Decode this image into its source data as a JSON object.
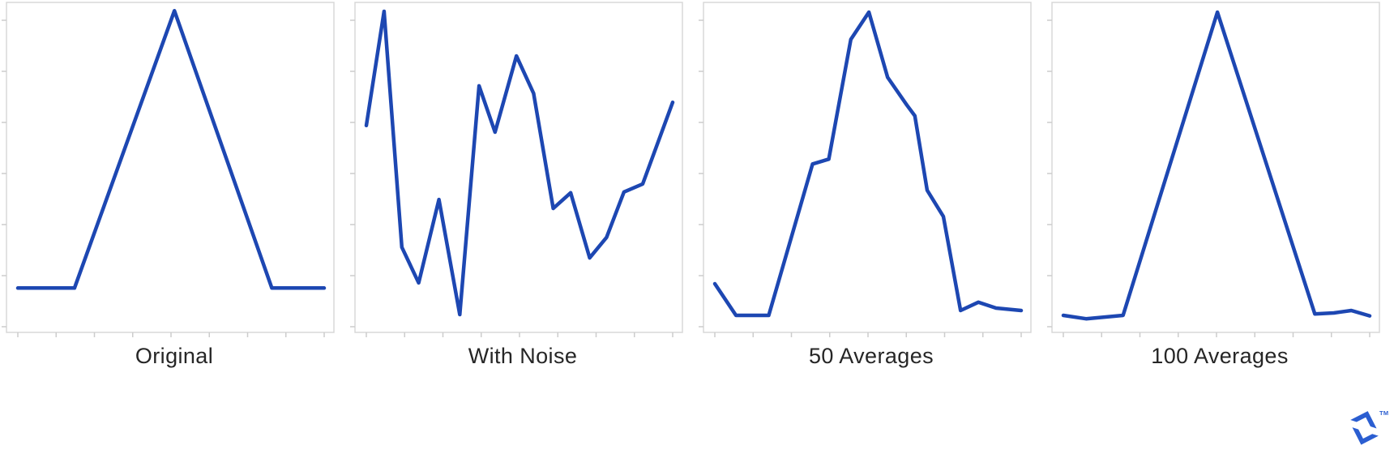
{
  "page": {
    "background": "#ffffff",
    "border_color": "#d8d8d8",
    "tick_color": "#cccccc"
  },
  "branding": {
    "logo_name": "toptal-logo",
    "logo_color": "#2b5ed1",
    "trademark": "TM"
  },
  "chart_data": [
    {
      "type": "line",
      "title": "Original",
      "line_color": "#1d47b2",
      "legend": "none",
      "grid": false,
      "x_axis": "unlabeled ticks (9)",
      "y_axis": "unlabeled ticks (7)",
      "ylim": [
        -0.96,
        6.18
      ],
      "x_unit": "fraction of x-span",
      "points": [
        [
          0.0,
          0.0
        ],
        [
          0.185,
          0.0
        ],
        [
          0.511,
          6.0
        ],
        [
          0.829,
          0.0
        ],
        [
          1.0,
          0.0
        ]
      ]
    },
    {
      "type": "line",
      "title": "With Noise",
      "line_color": "#1d47b2",
      "legend": "none",
      "grid": false,
      "x_axis": "unlabeled ticks (9)",
      "y_axis": "unlabeled ticks (7)",
      "ylim": [
        -0.4,
        7.0
      ],
      "x_unit": "fraction of x-span",
      "points": [
        [
          0.0,
          4.24
        ],
        [
          0.058,
          6.8
        ],
        [
          0.116,
          1.51
        ],
        [
          0.171,
          0.71
        ],
        [
          0.237,
          2.58
        ],
        [
          0.305,
          0.0
        ],
        [
          0.368,
          5.13
        ],
        [
          0.42,
          4.09
        ],
        [
          0.49,
          5.8
        ],
        [
          0.546,
          4.96
        ],
        [
          0.61,
          2.38
        ],
        [
          0.667,
          2.73
        ],
        [
          0.729,
          1.27
        ],
        [
          0.784,
          1.73
        ],
        [
          0.841,
          2.75
        ],
        [
          0.902,
          2.93
        ],
        [
          1.0,
          4.76
        ]
      ]
    },
    {
      "type": "line",
      "title": "50 Averages",
      "line_color": "#1d47b2",
      "legend": "none",
      "grid": false,
      "x_axis": "unlabeled ticks (9)",
      "y_axis": "unlabeled ticks (7)",
      "ylim": [
        -0.35,
        6.43
      ],
      "x_unit": "fraction of x-span",
      "points": [
        [
          0.0,
          0.65
        ],
        [
          0.069,
          0.0
        ],
        [
          0.176,
          0.0
        ],
        [
          0.319,
          3.11
        ],
        [
          0.372,
          3.21
        ],
        [
          0.444,
          5.67
        ],
        [
          0.503,
          6.23
        ],
        [
          0.564,
          4.89
        ],
        [
          0.627,
          4.32
        ],
        [
          0.653,
          4.1
        ],
        [
          0.693,
          2.57
        ],
        [
          0.746,
          2.03
        ],
        [
          0.802,
          0.1
        ],
        [
          0.86,
          0.27
        ],
        [
          0.918,
          0.15
        ],
        [
          1.0,
          0.1
        ]
      ]
    },
    {
      "type": "line",
      "title": "100 Averages",
      "line_color": "#1d47b2",
      "legend": "none",
      "grid": false,
      "x_axis": "unlabeled ticks (9)",
      "y_axis": "unlabeled ticks (7)",
      "ylim": [
        -0.35,
        6.43
      ],
      "x_unit": "fraction of x-span",
      "points": [
        [
          0.0,
          0.0
        ],
        [
          0.074,
          -0.07
        ],
        [
          0.195,
          0.0
        ],
        [
          0.503,
          6.23
        ],
        [
          0.821,
          0.03
        ],
        [
          0.883,
          0.05
        ],
        [
          0.94,
          0.1
        ],
        [
          1.0,
          -0.01
        ]
      ]
    }
  ]
}
